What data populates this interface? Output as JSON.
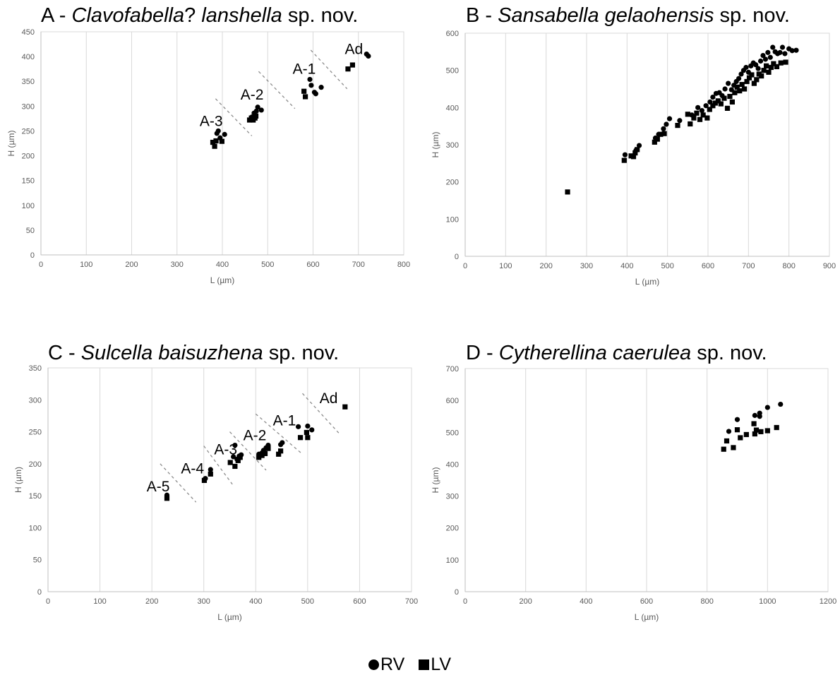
{
  "legend": {
    "rv": "RV",
    "lv": "LV"
  },
  "chart_data": [
    {
      "id": "A",
      "type": "scatter",
      "title_prefix": "A - ",
      "title_italic": "Clavofabella",
      "title_mid": "? ",
      "title_italic2": "lanshella",
      "title_suffix": " sp. nov.",
      "xlabel": "L (µm)",
      "ylabel": "H (µm)",
      "xlim": [
        0,
        800
      ],
      "ylim": [
        0,
        450
      ],
      "xticks": [
        0,
        100,
        200,
        300,
        400,
        500,
        600,
        700,
        800
      ],
      "yticks": [
        0,
        50,
        100,
        150,
        200,
        250,
        300,
        350,
        400,
        450
      ],
      "grid": "vertical",
      "series": [
        {
          "name": "RV",
          "marker": "circle",
          "points": [
            [
              388,
              245
            ],
            [
              391,
              250
            ],
            [
              405,
              243
            ],
            [
              395,
              236
            ],
            [
              465,
              278
            ],
            [
              470,
              286
            ],
            [
              478,
              298
            ],
            [
              486,
              292
            ],
            [
              475,
              290
            ],
            [
              593,
              354
            ],
            [
              596,
              342
            ],
            [
              603,
              328
            ],
            [
              606,
              325
            ],
            [
              618,
              338
            ],
            [
              718,
              405
            ],
            [
              722,
              401
            ]
          ]
        },
        {
          "name": "LV",
          "marker": "square",
          "points": [
            [
              379,
              227
            ],
            [
              383,
              219
            ],
            [
              386,
              230
            ],
            [
              399,
              229
            ],
            [
              460,
              272
            ],
            [
              464,
              276
            ],
            [
              468,
              272
            ],
            [
              472,
              276
            ],
            [
              474,
              280
            ],
            [
              580,
              330
            ],
            [
              583,
              319
            ],
            [
              677,
              375
            ],
            [
              687,
              383
            ]
          ]
        }
      ],
      "annotations": [
        {
          "text": "A-3",
          "x": 350,
          "y": 260
        },
        {
          "text": "A-2",
          "x": 440,
          "y": 313
        },
        {
          "text": "A-1",
          "x": 555,
          "y": 365
        },
        {
          "text": "Ad",
          "x": 670,
          "y": 405
        }
      ],
      "dividers": [
        [
          [
            385,
            315
          ],
          [
            465,
            240
          ]
        ],
        [
          [
            480,
            370
          ],
          [
            560,
            295
          ]
        ],
        [
          [
            595,
            413
          ],
          [
            675,
            335
          ]
        ]
      ]
    },
    {
      "id": "B",
      "type": "scatter",
      "title_prefix": "B - ",
      "title_italic": "Sansabella gelaohensis",
      "title_mid": "",
      "title_italic2": "",
      "title_suffix": " sp. nov.",
      "xlabel": "L (µm)",
      "ylabel": "H (µm)",
      "xlim": [
        0,
        900
      ],
      "ylim": [
        0,
        600
      ],
      "xticks": [
        0,
        100,
        200,
        300,
        400,
        500,
        600,
        700,
        800,
        900
      ],
      "yticks": [
        0,
        100,
        200,
        300,
        400,
        500,
        600
      ],
      "grid": "vertical",
      "series": [
        {
          "name": "RV",
          "marker": "circle",
          "points": [
            [
              395,
              273
            ],
            [
              422,
              285
            ],
            [
              430,
              298
            ],
            [
              470,
              318
            ],
            [
              478,
              328
            ],
            [
              490,
              343
            ],
            [
              497,
              355
            ],
            [
              505,
              370
            ],
            [
              530,
              365
            ],
            [
              560,
              380
            ],
            [
              575,
              400
            ],
            [
              585,
              392
            ],
            [
              595,
              405
            ],
            [
              605,
              415
            ],
            [
              612,
              428
            ],
            [
              620,
              438
            ],
            [
              628,
              440
            ],
            [
              635,
              432
            ],
            [
              642,
              450
            ],
            [
              650,
              465
            ],
            [
              658,
              448
            ],
            [
              664,
              460
            ],
            [
              670,
              470
            ],
            [
              676,
              478
            ],
            [
              682,
              490
            ],
            [
              688,
              500
            ],
            [
              694,
              508
            ],
            [
              700,
              495
            ],
            [
              706,
              512
            ],
            [
              712,
              520
            ],
            [
              718,
              515
            ],
            [
              724,
              505
            ],
            [
              730,
              525
            ],
            [
              736,
              540
            ],
            [
              742,
              530
            ],
            [
              748,
              548
            ],
            [
              754,
              535
            ],
            [
              760,
              562
            ],
            [
              766,
              550
            ],
            [
              772,
              545
            ],
            [
              778,
              548
            ],
            [
              784,
              562
            ],
            [
              790,
              545
            ],
            [
              800,
              558
            ],
            [
              808,
              553
            ],
            [
              818,
              554
            ]
          ]
        },
        {
          "name": "LV",
          "marker": "square",
          "points": [
            [
              253,
              173
            ],
            [
              393,
              258
            ],
            [
              410,
              270
            ],
            [
              416,
              268
            ],
            [
              420,
              278
            ],
            [
              425,
              287
            ],
            [
              468,
              307
            ],
            [
              475,
              315
            ],
            [
              483,
              328
            ],
            [
              492,
              330
            ],
            [
              525,
              352
            ],
            [
              550,
              382
            ],
            [
              556,
              356
            ],
            [
              565,
              372
            ],
            [
              572,
              385
            ],
            [
              580,
              368
            ],
            [
              588,
              380
            ],
            [
              598,
              372
            ],
            [
              604,
              395
            ],
            [
              612,
              405
            ],
            [
              618,
              412
            ],
            [
              625,
              418
            ],
            [
              632,
              410
            ],
            [
              640,
              425
            ],
            [
              648,
              398
            ],
            [
              654,
              430
            ],
            [
              660,
              415
            ],
            [
              666,
              440
            ],
            [
              672,
              455
            ],
            [
              678,
              445
            ],
            [
              684,
              462
            ],
            [
              690,
              450
            ],
            [
              696,
              470
            ],
            [
              702,
              480
            ],
            [
              708,
              488
            ],
            [
              714,
              465
            ],
            [
              720,
              475
            ],
            [
              726,
              490
            ],
            [
              732,
              485
            ],
            [
              738,
              500
            ],
            [
              744,
              512
            ],
            [
              750,
              495
            ],
            [
              756,
              508
            ],
            [
              762,
              518
            ],
            [
              770,
              510
            ],
            [
              780,
              520
            ],
            [
              792,
              522
            ]
          ]
        }
      ],
      "annotations": [],
      "dividers": []
    },
    {
      "id": "C",
      "type": "scatter",
      "title_prefix": "C - ",
      "title_italic": "Sulcella baisuzhena",
      "title_mid": "",
      "title_italic2": "",
      "title_suffix": " sp. nov.",
      "xlabel": "L (µm)",
      "ylabel": "H (µm)",
      "xlim": [
        0,
        700
      ],
      "ylim": [
        0,
        350
      ],
      "xticks": [
        0,
        100,
        200,
        300,
        400,
        500,
        600,
        700
      ],
      "yticks": [
        0,
        50,
        100,
        150,
        200,
        250,
        300,
        350
      ],
      "grid": "vertical",
      "series": [
        {
          "name": "RV",
          "marker": "circle",
          "points": [
            [
              229,
              151
            ],
            [
              303,
              177
            ],
            [
              313,
              191
            ],
            [
              357,
              211
            ],
            [
              360,
              229
            ],
            [
              364,
              207
            ],
            [
              368,
              212
            ],
            [
              372,
              214
            ],
            [
              406,
              215
            ],
            [
              412,
              217
            ],
            [
              415,
              221
            ],
            [
              420,
              225
            ],
            [
              424,
              229
            ],
            [
              448,
              230
            ],
            [
              451,
              233
            ],
            [
              482,
              258
            ],
            [
              500,
              259
            ],
            [
              508,
              253
            ]
          ]
        },
        {
          "name": "LV",
          "marker": "square",
          "points": [
            [
              229,
              146
            ],
            [
              301,
              174
            ],
            [
              313,
              184
            ],
            [
              351,
              202
            ],
            [
              360,
              196
            ],
            [
              366,
              205
            ],
            [
              370,
              210
            ],
            [
              406,
              210
            ],
            [
              412,
              213
            ],
            [
              418,
              216
            ],
            [
              424,
              224
            ],
            [
              444,
              215
            ],
            [
              448,
              220
            ],
            [
              486,
              241
            ],
            [
              498,
              249
            ],
            [
              500,
              241
            ],
            [
              572,
              289
            ]
          ]
        }
      ],
      "annotations": [
        {
          "text": "A-5",
          "x": 190,
          "y": 157
        },
        {
          "text": "A-4",
          "x": 256,
          "y": 185
        },
        {
          "text": "A-3",
          "x": 320,
          "y": 215
        },
        {
          "text": "A-2",
          "x": 376,
          "y": 237
        },
        {
          "text": "A-1",
          "x": 433,
          "y": 260
        },
        {
          "text": "Ad",
          "x": 523,
          "y": 295
        }
      ],
      "dividers": [
        [
          [
            216,
            200
          ],
          [
            285,
            140
          ]
        ],
        [
          [
            300,
            228
          ],
          [
            355,
            168
          ]
        ],
        [
          [
            350,
            250
          ],
          [
            420,
            190
          ]
        ],
        [
          [
            400,
            278
          ],
          [
            490,
            215
          ]
        ],
        [
          [
            490,
            310
          ],
          [
            560,
            248
          ]
        ]
      ]
    },
    {
      "id": "D",
      "type": "scatter",
      "title_prefix": "D - ",
      "title_italic": "Cytherellina caerulea",
      "title_mid": "",
      "title_italic2": "",
      "title_suffix": " sp. nov.",
      "xlabel": "L (µm)",
      "ylabel": "H (µm)",
      "xlim": [
        0,
        1200
      ],
      "ylim": [
        0,
        700
      ],
      "xticks": [
        0,
        200,
        400,
        600,
        800,
        1000,
        1200
      ],
      "yticks": [
        0,
        100,
        200,
        300,
        400,
        500,
        600,
        700
      ],
      "grid": "vertical",
      "series": [
        {
          "name": "RV",
          "marker": "circle",
          "points": [
            [
              872,
              503
            ],
            [
              900,
              540
            ],
            [
              958,
              553
            ],
            [
              974,
              560
            ],
            [
              974,
              550
            ],
            [
              1000,
              578
            ],
            [
              1043,
              588
            ]
          ]
        },
        {
          "name": "LV",
          "marker": "square",
          "points": [
            [
              855,
              447
            ],
            [
              865,
              473
            ],
            [
              887,
              452
            ],
            [
              900,
              508
            ],
            [
              910,
              483
            ],
            [
              930,
              493
            ],
            [
              955,
              527
            ],
            [
              958,
              495
            ],
            [
              963,
              507
            ],
            [
              978,
              502
            ],
            [
              1000,
              505
            ],
            [
              1030,
              515
            ]
          ]
        }
      ],
      "annotations": [],
      "dividers": []
    }
  ]
}
